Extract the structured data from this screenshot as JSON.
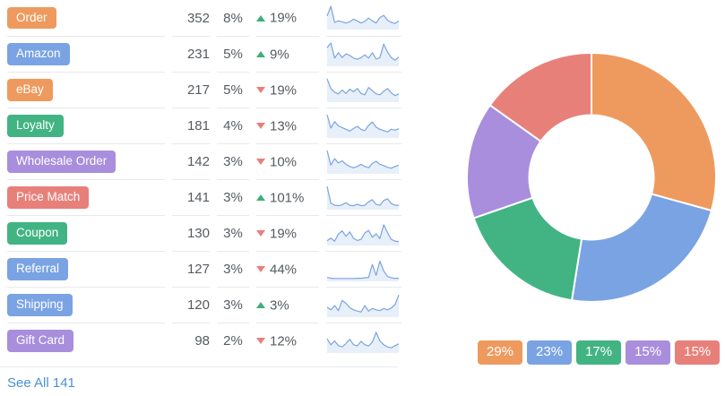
{
  "palette": {
    "orange": "#EE9A5E",
    "blue": "#7AA3E3",
    "green": "#42B483",
    "purple": "#A88EDC",
    "red": "#E8807A"
  },
  "ui_colors": {
    "text": "#565B61",
    "divider": "#E7E9EB",
    "link": "#4A90D2",
    "trend_up": "#3FAE7C",
    "trend_down": "#E8807A",
    "spark_line": "#7CA4DF",
    "spark_fill": "rgba(124,164,223,0.18)",
    "badge_text": "#FFFFFF",
    "donut_separator": "#FFFFFF"
  },
  "table": {
    "rows": [
      {
        "label": "Order",
        "color": "orange",
        "count": "352",
        "share": "8%",
        "trend_dir": "up",
        "trend_value": "19%"
      },
      {
        "label": "Amazon",
        "color": "blue",
        "count": "231",
        "share": "5%",
        "trend_dir": "up",
        "trend_value": "9%"
      },
      {
        "label": "eBay",
        "color": "orange",
        "count": "217",
        "share": "5%",
        "trend_dir": "down",
        "trend_value": "19%"
      },
      {
        "label": "Loyalty",
        "color": "green",
        "count": "181",
        "share": "4%",
        "trend_dir": "down",
        "trend_value": "13%"
      },
      {
        "label": "Wholesale Order",
        "color": "purple",
        "count": "142",
        "share": "3%",
        "trend_dir": "down",
        "trend_value": "10%"
      },
      {
        "label": "Price Match",
        "color": "red",
        "count": "141",
        "share": "3%",
        "trend_dir": "up",
        "trend_value": "101%"
      },
      {
        "label": "Coupon",
        "color": "green",
        "count": "130",
        "share": "3%",
        "trend_dir": "down",
        "trend_value": "19%"
      },
      {
        "label": "Referral",
        "color": "blue",
        "count": "127",
        "share": "3%",
        "trend_dir": "down",
        "trend_value": "44%"
      },
      {
        "label": "Shipping",
        "color": "blue",
        "count": "120",
        "share": "3%",
        "trend_dir": "up",
        "trend_value": "3%"
      },
      {
        "label": "Gift Card",
        "color": "purple",
        "count": "98",
        "share": "2%",
        "trend_dir": "down",
        "trend_value": "12%"
      }
    ],
    "see_all_label": "See All 141"
  },
  "donut": {
    "hole_ratio": 0.5,
    "start_angle_deg": -90,
    "direction": "clockwise",
    "segments": [
      {
        "badge": "29%",
        "pct": 29,
        "color": "orange"
      },
      {
        "badge": "23%",
        "pct": 23,
        "color": "blue"
      },
      {
        "badge": "17%",
        "pct": 17,
        "color": "green"
      },
      {
        "badge": "15%",
        "pct": 15,
        "color": "purple"
      },
      {
        "badge": "15%",
        "pct": 15,
        "color": "red"
      }
    ]
  },
  "chart_data": [
    {
      "type": "pie",
      "subtype": "donut",
      "labels": [
        "29%",
        "23%",
        "17%",
        "15%",
        "15%"
      ],
      "values": [
        29,
        23,
        17,
        15,
        15
      ],
      "unit": "%",
      "colors": [
        "#EE9A5E",
        "#7AA3E3",
        "#42B483",
        "#A88EDC",
        "#E8807A"
      ],
      "start_angle_deg": -90,
      "direction": "clockwise",
      "inner_radius_ratio": 0.5,
      "legend_position": "bottom-right",
      "title": ""
    },
    {
      "type": "line",
      "subtype": "sparkline-area",
      "ylim": [
        0,
        100
      ],
      "grid": false,
      "series": [
        {
          "name": "Order",
          "values": [
            55,
            100,
            25,
            32,
            28,
            22,
            28,
            40,
            32,
            22,
            30,
            45,
            32,
            22,
            48,
            58,
            35,
            25,
            20,
            32
          ]
        },
        {
          "name": "Amazon",
          "values": [
            78,
            100,
            30,
            55,
            32,
            50,
            42,
            30,
            24,
            32,
            45,
            30,
            55,
            25,
            32,
            95,
            58,
            32,
            20,
            35
          ]
        },
        {
          "name": "eBay",
          "values": [
            100,
            55,
            38,
            30,
            48,
            32,
            52,
            40,
            55,
            32,
            26,
            60,
            45,
            30,
            26,
            42,
            55,
            35,
            22,
            30
          ]
        },
        {
          "name": "Loyalty",
          "values": [
            100,
            38,
            68,
            48,
            40,
            32,
            24,
            36,
            46,
            32,
            26,
            50,
            66,
            42,
            32,
            26,
            20,
            32,
            28,
            35
          ]
        },
        {
          "name": "Wholesale Order",
          "values": [
            100,
            32,
            62,
            42,
            52,
            36,
            26,
            20,
            26,
            36,
            26,
            20,
            40,
            50,
            36,
            30,
            22,
            18,
            26,
            32
          ]
        },
        {
          "name": "Price Match",
          "values": [
            100,
            22,
            12,
            10,
            14,
            24,
            12,
            10,
            17,
            10,
            12,
            28,
            38,
            16,
            12,
            34,
            42,
            20,
            12,
            12
          ]
        },
        {
          "name": "Coupon",
          "values": [
            14,
            26,
            12,
            45,
            60,
            34,
            55,
            25,
            15,
            20,
            50,
            62,
            30,
            46,
            24,
            88,
            52,
            20,
            12,
            10
          ]
        },
        {
          "name": "Referral",
          "values": [
            10,
            6,
            5,
            5,
            5,
            5,
            5,
            5,
            6,
            6,
            8,
            10,
            70,
            20,
            85,
            40,
            14,
            8,
            6,
            6
          ]
        },
        {
          "name": "Shipping",
          "values": [
            38,
            26,
            46,
            22,
            70,
            56,
            36,
            26,
            20,
            16,
            46,
            20,
            32,
            26,
            22,
            32,
            26,
            34,
            50,
            95
          ]
        },
        {
          "name": "Gift Card",
          "values": [
            58,
            30,
            48,
            26,
            20,
            36,
            56,
            30,
            25,
            46,
            30,
            25,
            42,
            88,
            48,
            30,
            20,
            16,
            26,
            34
          ]
        }
      ]
    },
    {
      "type": "table",
      "columns": [
        "tag",
        "count",
        "share",
        "trend"
      ],
      "rows": [
        [
          "Order",
          352,
          "8%",
          "+19%"
        ],
        [
          "Amazon",
          231,
          "5%",
          "+9%"
        ],
        [
          "eBay",
          217,
          "5%",
          "-19%"
        ],
        [
          "Loyalty",
          181,
          "4%",
          "-13%"
        ],
        [
          "Wholesale Order",
          142,
          "3%",
          "-10%"
        ],
        [
          "Price Match",
          141,
          "3%",
          "+101%"
        ],
        [
          "Coupon",
          130,
          "3%",
          "-19%"
        ],
        [
          "Referral",
          127,
          "3%",
          "-44%"
        ],
        [
          "Shipping",
          120,
          "3%",
          "+3%"
        ],
        [
          "Gift Card",
          98,
          "2%",
          "-12%"
        ]
      ]
    }
  ]
}
